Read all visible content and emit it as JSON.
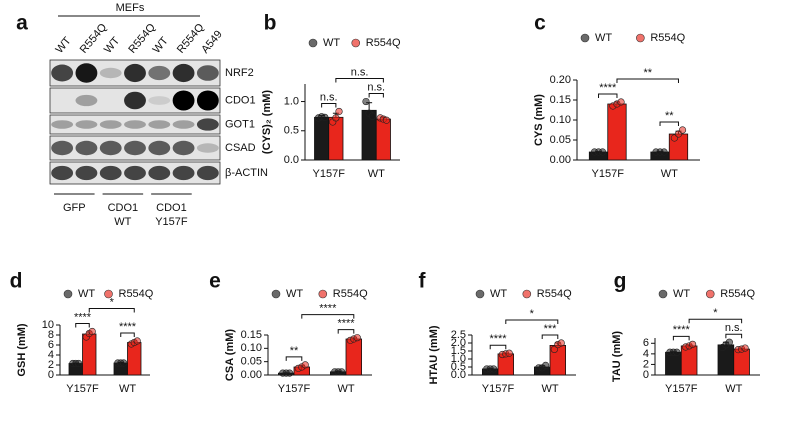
{
  "blot": {
    "label": "a",
    "header": "MEFs",
    "lanes": [
      "WT",
      "R554Q",
      "WT",
      "R554Q",
      "WT",
      "R554Q",
      "A549"
    ],
    "proteins": [
      "NRF2",
      "CDO1",
      "GOT1",
      "CSAD",
      "β-ACTIN"
    ],
    "groups": [
      [
        "GFP"
      ],
      [
        "CDO1",
        "WT"
      ],
      [
        "CDO1",
        "Y157F"
      ]
    ]
  },
  "chart_data": [
    {
      "type": "bar",
      "label": "b",
      "y_label": "(CYS)₂ (mM)",
      "categories": [
        "Y157F",
        "WT"
      ],
      "ylim": [
        0,
        1.3
      ],
      "yticks": [
        {
          "value": 0,
          "label": "0.0"
        },
        0.5,
        {
          "value": 1,
          "label": "1.0"
        }
      ],
      "series": [
        {
          "name": "WT",
          "color": "#1a1a1a",
          "values": [
            0.73,
            0.85
          ],
          "errors": [
            0.03,
            0.13
          ],
          "points": [
            [
              0.72,
              0.74,
              0.73
            ],
            [
              1.0,
              0.8,
              0.75
            ]
          ]
        },
        {
          "name": "R554Q",
          "color": "#e8261c",
          "values": [
            0.73,
            0.7
          ],
          "errors": [
            0.07,
            0.03
          ],
          "points": [
            [
              0.65,
              0.72,
              0.83
            ],
            [
              0.72,
              0.7,
              0.68
            ]
          ]
        }
      ],
      "comparisons": {
        "within": [
          "n.s.",
          "n.s."
        ],
        "between": "n.s."
      }
    },
    {
      "type": "bar",
      "label": "c",
      "y_label": "CYS (mM)",
      "categories": [
        "Y157F",
        "WT"
      ],
      "ylim": [
        0,
        0.2
      ],
      "yticks": [
        {
          "value": 0,
          "label": "0.00"
        },
        0.05,
        {
          "value": 0.1,
          "label": "0.10"
        },
        0.15,
        {
          "value": 0.2,
          "label": "0.20"
        }
      ],
      "series": [
        {
          "name": "WT",
          "color": "#1a1a1a",
          "values": [
            0.02,
            0.02
          ],
          "errors": [
            0.001,
            0.001
          ],
          "points": [
            [
              0.02,
              0.02,
              0.02
            ],
            [
              0.02,
              0.02,
              0.02
            ]
          ]
        },
        {
          "name": "R554Q",
          "color": "#e8261c",
          "values": [
            0.14,
            0.065
          ],
          "errors": [
            0.005,
            0.007
          ],
          "points": [
            [
              0.135,
              0.14,
              0.145
            ],
            [
              0.055,
              0.065,
              0.075
            ]
          ]
        }
      ],
      "comparisons": {
        "within": [
          "****",
          "**"
        ],
        "between": "**"
      }
    },
    {
      "type": "bar",
      "label": "d",
      "y_label": "GSH (mM)",
      "categories": [
        "Y157F",
        "WT"
      ],
      "ylim": [
        0,
        10
      ],
      "yticks": [
        0,
        2,
        4,
        6,
        8,
        10
      ],
      "series": [
        {
          "name": "WT",
          "color": "#1a1a1a",
          "values": [
            2.3,
            2.4
          ],
          "errors": [
            0.1,
            0.1
          ],
          "points": [
            [
              2.3,
              2.3,
              2.3
            ],
            [
              2.4,
              2.4,
              2.4
            ]
          ]
        },
        {
          "name": "R554Q",
          "color": "#e8261c",
          "values": [
            8.2,
            6.5
          ],
          "errors": [
            0.4,
            0.3
          ],
          "points": [
            [
              7.6,
              8.3,
              8.7
            ],
            [
              6.2,
              6.5,
              6.8
            ]
          ]
        }
      ],
      "comparisons": {
        "within": [
          "****",
          "****"
        ],
        "between": "*"
      }
    },
    {
      "type": "bar",
      "label": "e",
      "y_label": "CSA (mM)",
      "categories": [
        "Y157F",
        "WT"
      ],
      "ylim": [
        0,
        0.15
      ],
      "yticks": [
        {
          "value": 0,
          "label": "0.00"
        },
        0.05,
        {
          "value": 0.1,
          "label": "0.10"
        },
        0.15
      ],
      "series": [
        {
          "name": "WT",
          "color": "#1a1a1a",
          "values": [
            0.007,
            0.012
          ],
          "errors": [
            0.001,
            0.002
          ],
          "points": [
            [
              0.007,
              0.007,
              0.007
            ],
            [
              0.012,
              0.012,
              0.012
            ]
          ]
        },
        {
          "name": "R554Q",
          "color": "#e8261c",
          "values": [
            0.03,
            0.135
          ],
          "errors": [
            0.005,
            0.004
          ],
          "points": [
            [
              0.025,
              0.03,
              0.038
            ],
            [
              0.13,
              0.135,
              0.14
            ]
          ]
        }
      ],
      "comparisons": {
        "within": [
          "**",
          "****"
        ],
        "between": "****"
      }
    },
    {
      "type": "bar",
      "label": "f",
      "y_label": "HTAU (mM)",
      "categories": [
        "Y157F",
        "WT"
      ],
      "ylim": [
        0,
        2.5
      ],
      "yticks": [
        {
          "value": 0,
          "label": "0.0"
        },
        0.5,
        {
          "value": 1,
          "label": "1.0"
        },
        1.5,
        {
          "value": 2,
          "label": "2.0"
        },
        2.5
      ],
      "series": [
        {
          "name": "WT",
          "color": "#1a1a1a",
          "values": [
            0.38,
            0.5
          ],
          "errors": [
            0.02,
            0.08
          ],
          "points": [
            [
              0.38,
              0.38,
              0.38
            ],
            [
              0.45,
              0.45,
              0.6
            ]
          ]
        },
        {
          "name": "R554Q",
          "color": "#e8261c",
          "values": [
            1.32,
            1.85
          ],
          "errors": [
            0.05,
            0.15
          ],
          "points": [
            [
              1.28,
              1.32,
              1.36
            ],
            [
              1.6,
              1.9,
              2.0
            ]
          ]
        }
      ],
      "comparisons": {
        "within": [
          "****",
          "***"
        ],
        "between": "*"
      }
    },
    {
      "type": "bar",
      "label": "g",
      "y_label": "TAU (mM)",
      "categories": [
        "Y157F",
        "WT"
      ],
      "ylim": [
        0,
        7
      ],
      "yticks": [
        0,
        2,
        4,
        6
      ],
      "series": [
        {
          "name": "WT",
          "color": "#1a1a1a",
          "values": [
            4.3,
            5.7
          ],
          "errors": [
            0.1,
            0.5
          ],
          "points": [
            [
              4.3,
              4.3,
              4.3
            ],
            [
              5.2,
              5.7,
              6.2
            ]
          ]
        },
        {
          "name": "R554Q",
          "color": "#e8261c",
          "values": [
            5.5,
            4.9
          ],
          "errors": [
            0.2,
            0.15
          ],
          "points": [
            [
              5.3,
              5.5,
              5.8
            ],
            [
              4.8,
              4.9,
              5.1
            ]
          ]
        }
      ],
      "comparisons": {
        "within": [
          "****",
          "n.s."
        ],
        "between": "*"
      }
    }
  ]
}
